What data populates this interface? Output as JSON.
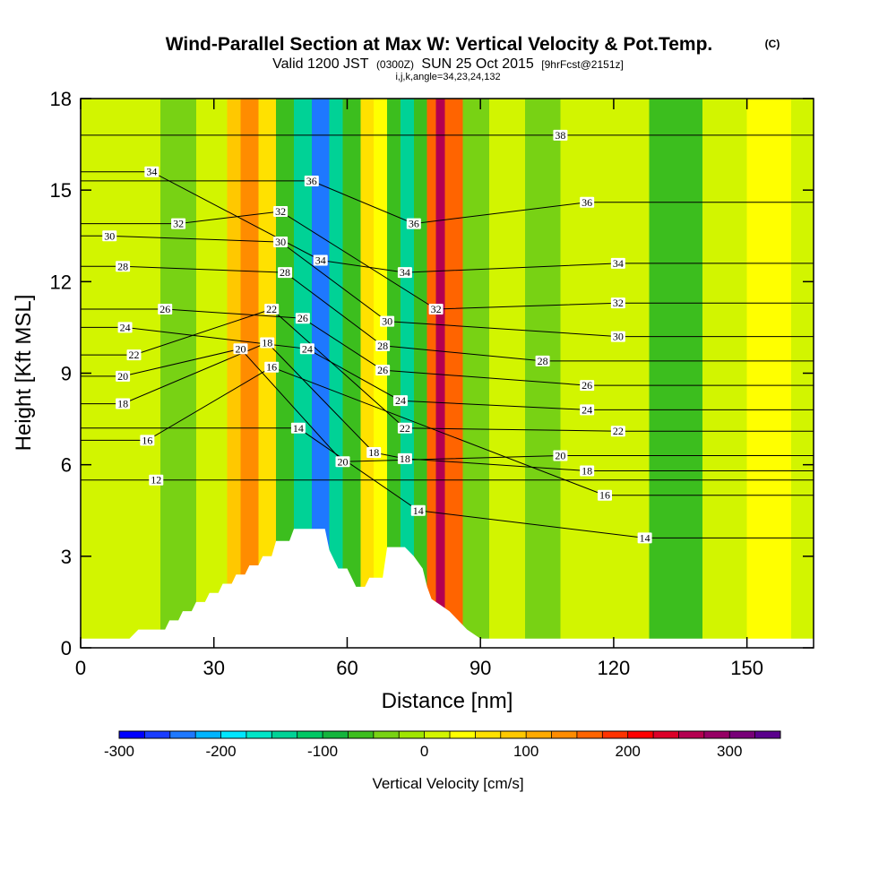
{
  "header": {
    "title": "Wind-Parallel Section at Max W: Vertical Velocity & Pot.Temp.",
    "copyright": "(C)",
    "subtitle_a": "Valid 1200 JST",
    "subtitle_b": "(0300Z)",
    "subtitle_c": "SUN 25 Oct 2015",
    "subtitle_d": "[9hrFcst@2151z]",
    "params": "i,j,k,angle=34,23,24,132"
  },
  "chart_data": {
    "type": "heatmap",
    "xlabel": "Distance [nm]",
    "ylabel": "Height [Kft MSL]",
    "xlim": [
      0,
      165
    ],
    "ylim": [
      0,
      18
    ],
    "x_ticks": [
      0,
      30,
      60,
      90,
      120,
      150
    ],
    "y_ticks": [
      0,
      3,
      6,
      9,
      12,
      15,
      18
    ],
    "colorbar": {
      "label": "Vertical Velocity [cm/s]",
      "range": [
        -300,
        350
      ],
      "step": 25,
      "tick_labels": [
        -300,
        -200,
        -100,
        0,
        100,
        200,
        300
      ],
      "colors": [
        "#0000ff",
        "#1a3cff",
        "#1e78ff",
        "#00b4ff",
        "#00e6ff",
        "#00e6c8",
        "#00d296",
        "#00c864",
        "#14b43c",
        "#3cbe1e",
        "#78d214",
        "#a0e600",
        "#d2f500",
        "#ffff00",
        "#ffe100",
        "#ffc800",
        "#ffaa00",
        "#ff8c00",
        "#ff6400",
        "#ff3200",
        "#ff0000",
        "#dc0028",
        "#b40050",
        "#960064",
        "#780078",
        "#5a008c"
      ]
    },
    "vertical_velocity_bands": [
      {
        "x": 0,
        "w": 0
      },
      {
        "x": 8,
        "w": 5
      },
      {
        "x": 18,
        "w": -40
      },
      {
        "x": 26,
        "w": 10
      },
      {
        "x": 33,
        "w": 90
      },
      {
        "x": 36,
        "w": 130
      },
      {
        "x": 40,
        "w": 60
      },
      {
        "x": 44,
        "w": -60
      },
      {
        "x": 48,
        "w": -150
      },
      {
        "x": 52,
        "w": -230
      },
      {
        "x": 56,
        "w": -150
      },
      {
        "x": 59,
        "w": -60
      },
      {
        "x": 63,
        "w": 60
      },
      {
        "x": 66,
        "w": 30
      },
      {
        "x": 69,
        "w": -70
      },
      {
        "x": 72,
        "w": -140
      },
      {
        "x": 75,
        "w": -60
      },
      {
        "x": 78,
        "w": 150
      },
      {
        "x": 80,
        "w": 260
      },
      {
        "x": 82,
        "w": 150
      },
      {
        "x": 86,
        "w": -30
      },
      {
        "x": 92,
        "w": 10
      },
      {
        "x": 100,
        "w": -50
      },
      {
        "x": 108,
        "w": 10
      },
      {
        "x": 118,
        "w": 20
      },
      {
        "x": 128,
        "w": -60
      },
      {
        "x": 140,
        "w": 10
      },
      {
        "x": 150,
        "w": 30
      },
      {
        "x": 160,
        "w": 5
      },
      {
        "x": 165,
        "w": 5
      }
    ],
    "terrain": [
      [
        0,
        0.3
      ],
      [
        11,
        0.3
      ],
      [
        13,
        0.6
      ],
      [
        19,
        0.6
      ],
      [
        20,
        0.9
      ],
      [
        22,
        0.9
      ],
      [
        23,
        1.2
      ],
      [
        25,
        1.2
      ],
      [
        26,
        1.5
      ],
      [
        28,
        1.5
      ],
      [
        29,
        1.8
      ],
      [
        31,
        1.8
      ],
      [
        32,
        2.1
      ],
      [
        34,
        2.1
      ],
      [
        35,
        2.4
      ],
      [
        37,
        2.4
      ],
      [
        38,
        2.7
      ],
      [
        40,
        2.7
      ],
      [
        41,
        3.0
      ],
      [
        43,
        3.0
      ],
      [
        44,
        3.5
      ],
      [
        47,
        3.5
      ],
      [
        48,
        3.9
      ],
      [
        55,
        3.9
      ],
      [
        56,
        3.2
      ],
      [
        58,
        2.6
      ],
      [
        60,
        2.6
      ],
      [
        62,
        2.0
      ],
      [
        64,
        2.0
      ],
      [
        65,
        2.3
      ],
      [
        68,
        2.3
      ],
      [
        69,
        3.3
      ],
      [
        73,
        3.3
      ],
      [
        75,
        3.0
      ],
      [
        77,
        2.6
      ],
      [
        78,
        2.0
      ],
      [
        79,
        1.6
      ],
      [
        81,
        1.4
      ],
      [
        83,
        1.2
      ],
      [
        85,
        0.9
      ],
      [
        87,
        0.6
      ],
      [
        90,
        0.3
      ],
      [
        165,
        0.3
      ]
    ],
    "theta_contours": [
      {
        "value": 12,
        "label_at": [
          17,
          5.5
        ]
      },
      {
        "value": 14,
        "label_at": [
          49,
          7.2
        ]
      },
      {
        "value": 14,
        "label_at": [
          76,
          4.5
        ]
      },
      {
        "value": 14,
        "label_at": [
          127,
          3.6
        ]
      },
      {
        "value": 16,
        "label_at": [
          15,
          6.8
        ]
      },
      {
        "value": 16,
        "label_at": [
          43,
          9.2
        ]
      },
      {
        "value": 16,
        "label_at": [
          118,
          5.0
        ]
      },
      {
        "value": 18,
        "label_at": [
          9.5,
          8.0
        ]
      },
      {
        "value": 18,
        "label_at": [
          42,
          10.0
        ]
      },
      {
        "value": 18,
        "label_at": [
          66,
          6.4
        ]
      },
      {
        "value": 18,
        "label_at": [
          73,
          6.2
        ]
      },
      {
        "value": 18,
        "label_at": [
          114,
          5.8
        ]
      },
      {
        "value": 20,
        "label_at": [
          9.5,
          8.9
        ]
      },
      {
        "value": 20,
        "label_at": [
          36,
          9.8
        ]
      },
      {
        "value": 20,
        "label_at": [
          59,
          6.1
        ]
      },
      {
        "value": 20,
        "label_at": [
          108,
          6.3
        ]
      },
      {
        "value": 22,
        "label_at": [
          12,
          9.6
        ]
      },
      {
        "value": 22,
        "label_at": [
          43,
          11.1
        ]
      },
      {
        "value": 22,
        "label_at": [
          73,
          7.2
        ]
      },
      {
        "value": 22,
        "label_at": [
          121,
          7.1
        ]
      },
      {
        "value": 24,
        "label_at": [
          10,
          10.5
        ]
      },
      {
        "value": 24,
        "label_at": [
          51,
          9.8
        ]
      },
      {
        "value": 24,
        "label_at": [
          72,
          8.1
        ]
      },
      {
        "value": 24,
        "label_at": [
          114,
          7.8
        ]
      },
      {
        "value": 26,
        "label_at": [
          19,
          11.1
        ]
      },
      {
        "value": 26,
        "label_at": [
          50,
          10.8
        ]
      },
      {
        "value": 26,
        "label_at": [
          68,
          9.1
        ]
      },
      {
        "value": 26,
        "label_at": [
          114,
          8.6
        ]
      },
      {
        "value": 28,
        "label_at": [
          9.5,
          12.5
        ]
      },
      {
        "value": 28,
        "label_at": [
          46,
          12.3
        ]
      },
      {
        "value": 28,
        "label_at": [
          68,
          9.9
        ]
      },
      {
        "value": 28,
        "label_at": [
          104,
          9.4
        ]
      },
      {
        "value": 30,
        "label_at": [
          6.5,
          13.5
        ]
      },
      {
        "value": 30,
        "label_at": [
          45,
          13.3
        ]
      },
      {
        "value": 30,
        "label_at": [
          69,
          10.7
        ]
      },
      {
        "value": 30,
        "label_at": [
          121,
          10.2
        ]
      },
      {
        "value": 32,
        "label_at": [
          22,
          13.9
        ]
      },
      {
        "value": 32,
        "label_at": [
          45,
          14.3
        ]
      },
      {
        "value": 32,
        "label_at": [
          80,
          11.1
        ]
      },
      {
        "value": 32,
        "label_at": [
          121,
          11.3
        ]
      },
      {
        "value": 34,
        "label_at": [
          16,
          15.6
        ]
      },
      {
        "value": 34,
        "label_at": [
          54,
          12.7
        ]
      },
      {
        "value": 34,
        "label_at": [
          73,
          12.3
        ]
      },
      {
        "value": 34,
        "label_at": [
          121,
          12.6
        ]
      },
      {
        "value": 36,
        "label_at": [
          52,
          15.3
        ]
      },
      {
        "value": 36,
        "label_at": [
          75,
          13.9
        ]
      },
      {
        "value": 36,
        "label_at": [
          114,
          14.6
        ]
      },
      {
        "value": 38,
        "label_at": [
          108,
          16.8
        ]
      }
    ]
  }
}
